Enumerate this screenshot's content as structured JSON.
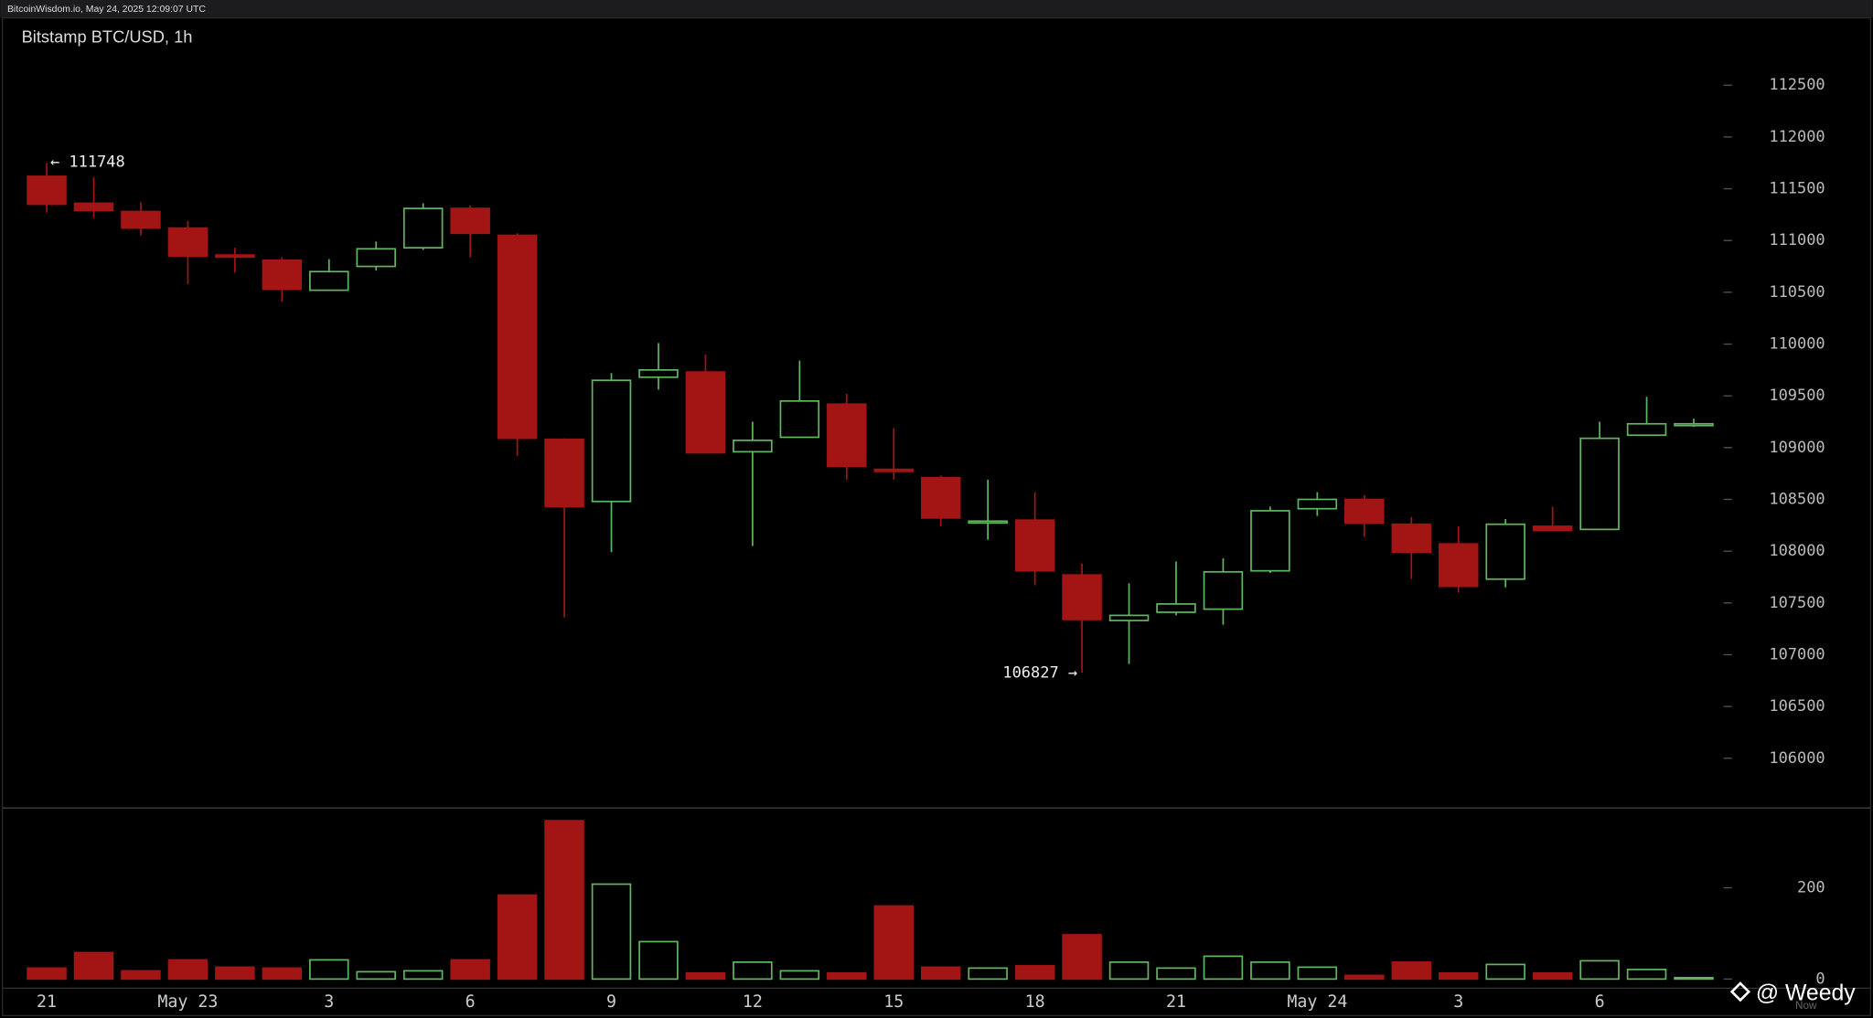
{
  "header": "BitcoinWisdom.io, May 24, 2025 12:09:07 UTC",
  "watermark": "@ Weedy",
  "now_label": "Now",
  "chart_data": [
    {
      "type": "candlestick",
      "title": "Bitstamp BTC/USD, 1h",
      "categories": [
        "21",
        null,
        null,
        "May 23",
        null,
        null,
        "3",
        null,
        null,
        "6",
        null,
        null,
        "9",
        null,
        null,
        "12",
        null,
        null,
        "15",
        null,
        null,
        "18",
        null,
        null,
        "21",
        null,
        null,
        "May 24",
        null,
        null,
        "3",
        null,
        null,
        "6",
        null,
        null
      ],
      "open": [
        111620,
        111360,
        111280,
        111120,
        110860,
        110810,
        110520,
        110750,
        110930,
        111310,
        111050,
        109080,
        108480,
        109680,
        109730,
        108960,
        109100,
        109420,
        108790,
        108710,
        108280,
        108300,
        107770,
        107330,
        107410,
        107440,
        107810,
        108410,
        108500,
        108260,
        108070,
        107730,
        108240,
        108210,
        109120,
        109220
      ],
      "high": [
        111748,
        111610,
        111370,
        111190,
        110930,
        110840,
        110820,
        110990,
        111360,
        111340,
        111070,
        109090,
        109720,
        110010,
        109900,
        109250,
        109840,
        109520,
        109190,
        108730,
        108690,
        108570,
        107880,
        107690,
        107900,
        107930,
        108430,
        108570,
        108540,
        108330,
        108240,
        108310,
        108430,
        109250,
        109490,
        109280
      ],
      "low": [
        111270,
        111220,
        111050,
        110580,
        110690,
        110410,
        110520,
        110710,
        110910,
        110840,
        108920,
        107360,
        107990,
        109560,
        108950,
        108050,
        109100,
        108690,
        108690,
        108240,
        108110,
        107670,
        106827,
        106910,
        107380,
        107290,
        107790,
        108340,
        108140,
        107730,
        107600,
        107650,
        108200,
        108210,
        109120,
        109200
      ],
      "close": [
        111350,
        111290,
        111120,
        110850,
        110840,
        110530,
        110700,
        110920,
        111310,
        111070,
        109090,
        108430,
        109650,
        109750,
        108950,
        109070,
        109450,
        108820,
        108770,
        108320,
        108290,
        107810,
        107340,
        107380,
        107490,
        107800,
        108390,
        108500,
        108270,
        107990,
        107660,
        108260,
        108200,
        109090,
        109230,
        109230
      ],
      "ylim": [
        105520,
        113150
      ],
      "yticks": [
        106000,
        106500,
        107000,
        107500,
        108000,
        108500,
        109000,
        109500,
        110000,
        110500,
        111000,
        111500,
        112000,
        112500
      ],
      "up_color": "#5fb85f",
      "down_color": "#a31515",
      "annotations": [
        "← 111748",
        "106827 →"
      ]
    },
    {
      "type": "volume",
      "values": [
        24,
        58,
        18,
        42,
        26,
        24,
        42,
        16,
        18,
        42,
        184,
        347,
        208,
        82,
        13,
        37,
        18,
        13,
        160,
        26,
        24,
        29,
        97,
        37,
        24,
        50,
        37,
        26,
        8,
        37,
        13,
        32,
        13,
        40,
        21,
        3
      ],
      "ylim": [
        -20,
        375
      ],
      "yticks": [
        0,
        200
      ],
      "up_color": "#5fb85f",
      "down_color": "#a31515"
    }
  ]
}
